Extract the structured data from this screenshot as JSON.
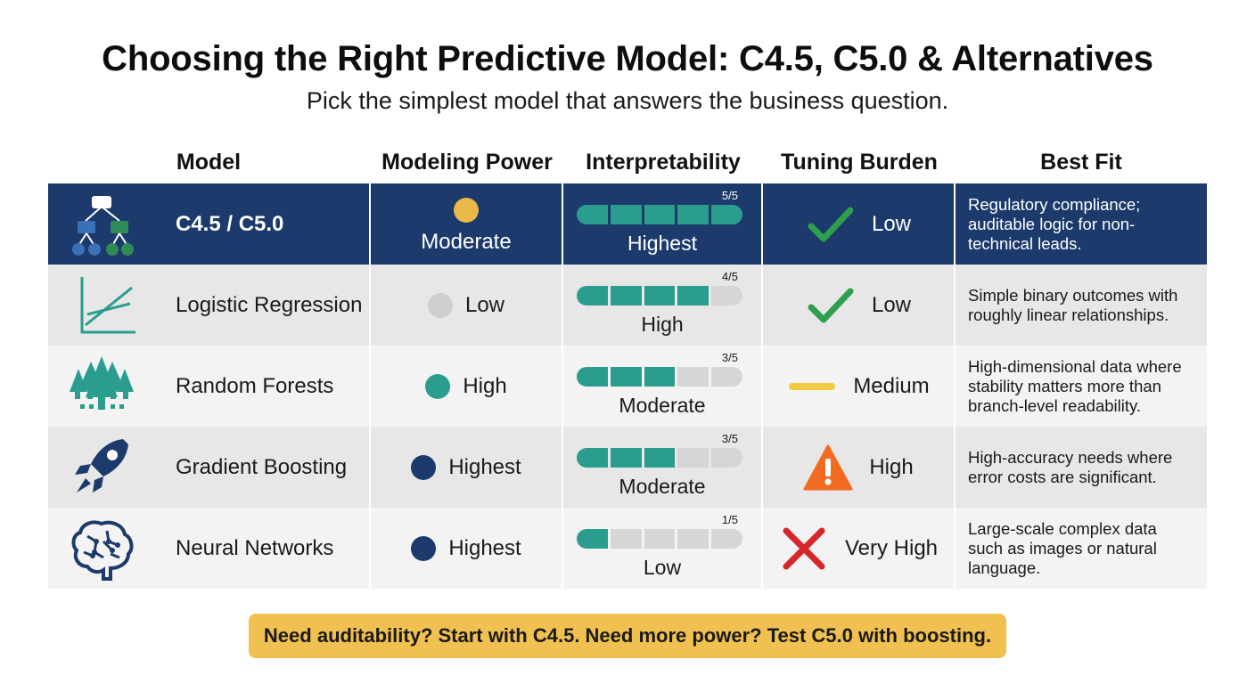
{
  "title": "Choosing the Right Predictive Model: C4.5, C5.0 & Alternatives",
  "subtitle": "Pick the simplest model that answers the business question.",
  "headers": {
    "model": "Model",
    "power": "Modeling Power",
    "interp": "Interpretability",
    "tuning": "Tuning Burden",
    "fit": "Best Fit"
  },
  "rows": [
    {
      "icon": "decision-tree-icon",
      "model": "C4.5 / C5.0",
      "power": "Moderate",
      "power_color": "#e9b949",
      "interp_score": 5,
      "interp_score_label": "5/5",
      "interp_label": "Highest",
      "tuning": "Low",
      "tuning_icon": "checkmark-icon",
      "fit": "Regulatory compliance; auditable logic for non-technical leads."
    },
    {
      "icon": "line-chart-icon",
      "model": "Logistic Regression",
      "power": "Low",
      "power_color": "#cfcfcf",
      "interp_score": 4,
      "interp_score_label": "4/5",
      "interp_label": "High",
      "tuning": "Low",
      "tuning_icon": "checkmark-icon",
      "fit": "Simple binary outcomes with roughly linear relationships."
    },
    {
      "icon": "forest-icon",
      "model": "Random Forests",
      "power": "High",
      "power_color": "#2a9d8f",
      "interp_score": 3,
      "interp_score_label": "3/5",
      "interp_label": "Moderate",
      "tuning": "Medium",
      "tuning_icon": "dash-icon",
      "fit": "High-dimensional data where stability matters more than branch-level readability."
    },
    {
      "icon": "rocket-icon",
      "model": "Gradient Boosting",
      "power": "Highest",
      "power_color": "#1c3a6b",
      "interp_score": 3,
      "interp_score_label": "3/5",
      "interp_label": "Moderate",
      "tuning": "High",
      "tuning_icon": "warning-icon",
      "fit": "High-accuracy needs where error costs are significant."
    },
    {
      "icon": "brain-icon",
      "model": "Neural Networks",
      "power": "Highest",
      "power_color": "#1c3a6b",
      "interp_score": 1,
      "interp_score_label": "1/5",
      "interp_label": "Low",
      "tuning": "Very High",
      "tuning_icon": "cross-icon",
      "fit": "Large-scale complex data such as images or natural language."
    }
  ],
  "callout": "Need auditability? Start with C4.5. Need more power? Test C5.0 with boosting."
}
